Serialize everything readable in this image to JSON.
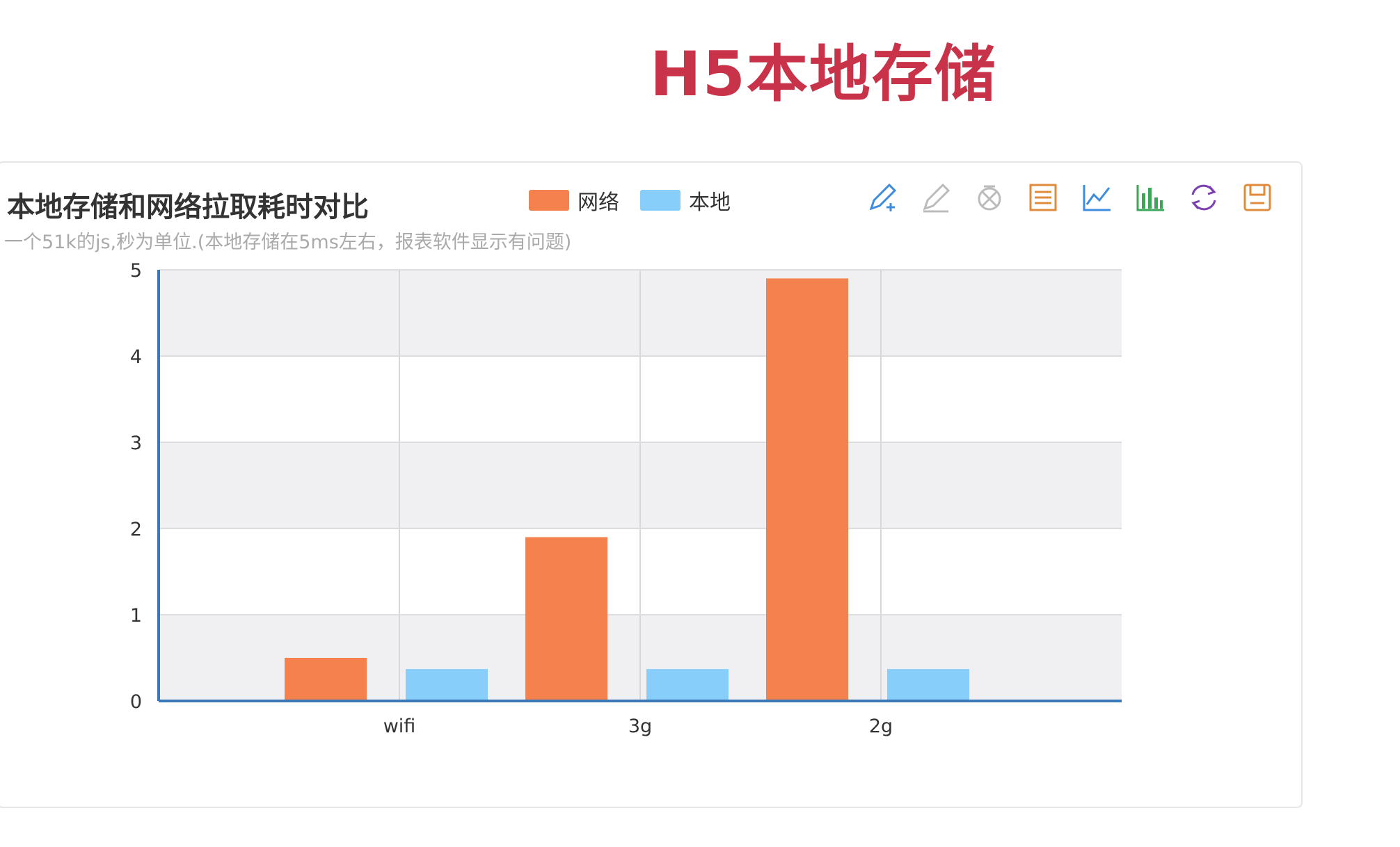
{
  "page": {
    "heading": "H5本地存储"
  },
  "toolbox": {
    "icons": [
      "mark-pen-icon",
      "mark-eraser-icon",
      "clear-marks-icon",
      "data-view-icon",
      "line-chart-icon",
      "bar-chart-icon",
      "restore-icon",
      "save-image-icon"
    ],
    "colors": [
      "#3d8ce0",
      "#bbbbbb",
      "#bbbbbb",
      "#e08a3c",
      "#3d8ce0",
      "#3aa757",
      "#7b3fb0",
      "#e08a3c"
    ]
  },
  "chart_data": {
    "type": "bar",
    "title": "本地存储和网络拉取耗时对比",
    "subtitle": "一个51k的js,秒为单位.(本地存储在5ms左右，报表软件显示有问题)",
    "categories": [
      "wifi",
      "3g",
      "2g"
    ],
    "series": [
      {
        "name": "网络",
        "color": "#f4814e",
        "values": [
          0.5,
          1.9,
          4.9
        ]
      },
      {
        "name": "本地",
        "color": "#87cefa",
        "values": [
          0.37,
          0.37,
          0.37
        ]
      }
    ],
    "ylim": [
      0,
      5
    ],
    "yticks": [
      "0",
      "1",
      "2",
      "3",
      "4",
      "5"
    ],
    "grid": true,
    "legend_position": "top"
  }
}
